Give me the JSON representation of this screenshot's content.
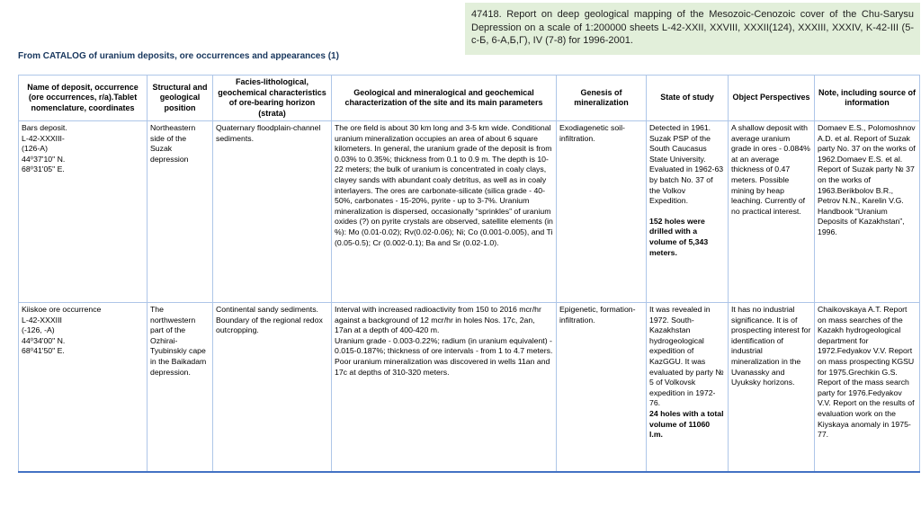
{
  "report_box": {
    "text": "47418. Report on deep geological mapping of the Mesozoic-Cenozoic cover of the Chu-Sarysu Depression on a scale of 1:200000 sheets L-42-XXII, XXVIII, XXXII(124), XXXIII, XXXIV, K-42-III (5-с-Б, 6-А,Б,Г), IV (7-8) for 1996-2001.",
    "background_color": "#e2efda"
  },
  "caption": {
    "text": "From CATALOG of uranium deposits, ore occurrences and appearances (1)",
    "color": "#17365d"
  },
  "table": {
    "border_color": "#aec6e8",
    "bottom_border_color": "#4472c4",
    "headers": [
      "Name of deposit, occurrence (ore occurrences, r/a).Tablet nomenclature, coordinates",
      "Structural and geological position",
      "Facies-lithological, geochemical characteristics of ore-bearing horizon (strata)",
      "Geological and mineralogical and geochemical characterization of the site and its main parameters",
      "Genesis of mineralization",
      "State of study",
      "Object Perspectives",
      "Note, including source of information"
    ],
    "rows": [
      {
        "cells": [
          [
            {
              "t": "Bars deposit."
            },
            {
              "t": "L-42-XXXIII-"
            },
            {
              "t": "(126-A)"
            },
            {
              "t": "44⁰37'10\" N."
            },
            {
              "t": "68⁰31'05\" E."
            }
          ],
          [
            {
              "t": "Northeastern side of the Suzak depression"
            }
          ],
          [
            {
              "t": "Quaternary floodplain-channel sediments."
            }
          ],
          [
            {
              "t": "The ore field is about 30 km long and 3-5 km wide. Conditional uranium mineralization occupies an area of about 6 square kilometers. In general, the uranium grade of the deposit is from 0.03% to 0.35%; thickness from 0.1 to 0.9 m. The depth is 10-22 meters; the bulk of uranium is concentrated in coaly clays, clayey sands with abundant coaly detritus, as well as in coaly interlayers. The ores are carbonate-silicate (silica grade - 40-50%, carbonates - 15-20%, pyrite - up to 3-7%. Uranium mineralization is dispersed, occasionally “sprinkles” of uranium oxides (?) on pyrite crystals are observed, satellite elements (in %): Mo (0.01-0.02); Rv(0.02-0.06); Ni; Co (0.001-0.005), and Ti (0.05-0.5); Cr (0.002-0.1); Ba and Sr (0.02-1.0)."
            }
          ],
          [
            {
              "t": "Exodiagenetic soil-infiltration."
            }
          ],
          [
            {
              "t": "Detected in 1961. Suzak PSP of the South Caucasus State University. Evaluated in 1962-63 by batch No. 37 of the Volkov Expedition."
            },
            {
              "t": "152 holes were drilled with a volume of 5,343 meters.",
              "b": true,
              "gap": true
            }
          ],
          [
            {
              "t": "A shallow deposit with average uranium grade in ores - 0.084% at an average thickness of 0.47 meters. Possible mining by heap leaching. Currently of no practical interest."
            }
          ],
          [
            {
              "t": "Domaev E.S., Polomoshnov A.D. et al. Report of Suzak party No. 37 on the works of 1962.Domaev E.S. et al. Report of Suzak party № 37 on the works of 1963.Berikbolov B.R., Petrov N.N., Karelin V.G. Handbook “Uranium Deposits of Kazakhstan”, 1996."
            }
          ]
        ]
      },
      {
        "cells": [
          [
            {
              "t": "Kiiskoe ore occurrence"
            },
            {
              "t": "L-42-XXXIII"
            },
            {
              "t": "(-126, -A)"
            },
            {
              "t": "44⁰34'00\" N."
            },
            {
              "t": "68⁰41'50\" E."
            }
          ],
          [
            {
              "t": "The northwestern part of the Ozhirai-Tyubinskiy cape in the Baikadam depression."
            }
          ],
          [
            {
              "t": "Continental sandy sediments. Boundary of the regional redox outcropping."
            }
          ],
          [
            {
              "t": "Interval with increased radioactivity from 150 to 2016 mcr/hr against a background of 12 mcr/hr in holes Nos. 17c, 2an, 17an at a depth of 400-420 m."
            },
            {
              "t": "Uranium grade - 0.003-0.22%; radium (in uranium equivalent) - 0.015-0.187%; thickness of ore intervals - from 1 to 4.7 meters."
            },
            {
              "t": "Poor uranium mineralization was discovered in wells 11an and 17c at depths of 310-320 meters."
            }
          ],
          [
            {
              "t": "Epigenetic, formation-infiltration."
            }
          ],
          [
            {
              "t": "It was revealed in 1972. South-Kazakhstan hydrogeological expedition of KazGGU. It was evaluated by party № 5 of Volkovsk expedition in 1972-76."
            },
            {
              "t": "24 holes with a total volume of 11060 l.m.",
              "b": true
            }
          ],
          [
            {
              "t": "It has no industrial significance. It is of prospecting interest for identification of industrial mineralization in the Uvanassky and Uyuksky horizons."
            }
          ],
          [
            {
              "t": "Chaikovskaya A.T. Report on mass searches of the Kazakh hydrogeological department for 1972.Fedyakov V.V. Report on mass prospecting KGSU for 1975.Grechkin G.S. Report of the mass search party for 1976.Fedyakov V.V. Report on the results of evaluation work on the Kiyskaya anomaly in 1975-77."
            }
          ]
        ]
      }
    ]
  }
}
